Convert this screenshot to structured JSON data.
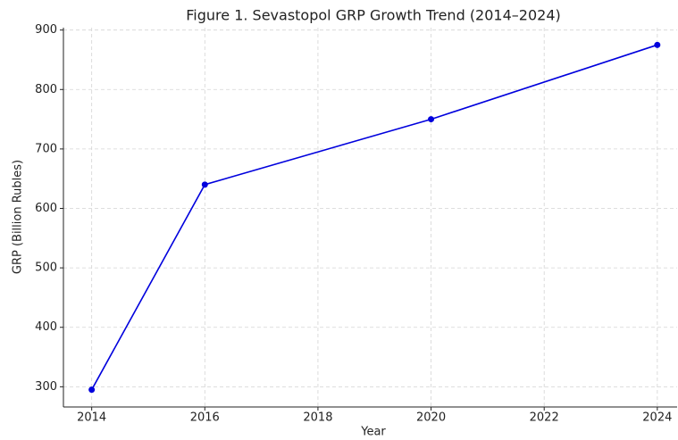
{
  "chart_data": {
    "type": "line",
    "title": "Figure 1. Sevastopol GRP Growth Trend (2014–2024)",
    "x_label": "Year",
    "y_label": "GRP (Billion Rubles)",
    "x": [
      2014,
      2016,
      2020,
      2024
    ],
    "series": [
      {
        "name": "GRP",
        "color": "#0000dd",
        "values": [
          295,
          640,
          750,
          875
        ]
      }
    ],
    "xlim": [
      2013.5,
      2024.35
    ],
    "xticks": [
      2014,
      2016,
      2018,
      2020,
      2022,
      2024
    ],
    "ylim": [
      266,
      904
    ],
    "yticks": [
      300,
      400,
      500,
      600,
      700,
      800,
      900
    ],
    "grid": true
  }
}
